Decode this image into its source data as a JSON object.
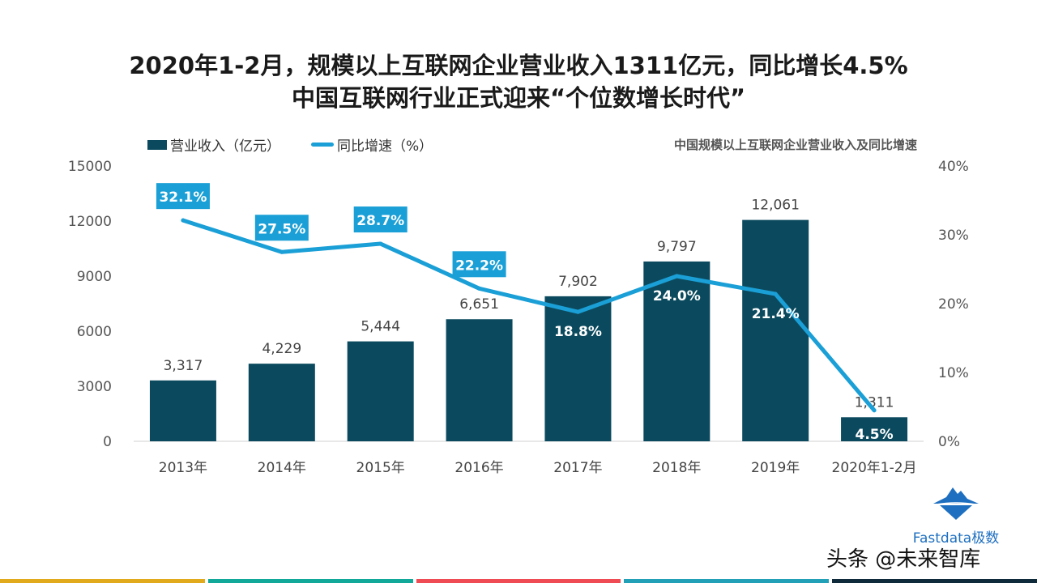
{
  "title_line1": "2020年1-2月，规模以上互联网企业营业收入1311亿元，同比增长4.5%",
  "title_line2": "中国互联网行业正式迎来“个位数增长时代”",
  "logo_text": "Fastdata极数",
  "watermark": "头条 @未来智库",
  "stripe_colors": [
    "#e0aa1c",
    "#11a89a",
    "#ef4b55",
    "#22a0b8",
    "#0f2a3b"
  ],
  "chart_data": {
    "type": "bar+line",
    "title": "中国规模以上互联网企业营业收入及同比增速",
    "categories": [
      "2013年",
      "2014年",
      "2015年",
      "2016年",
      "2017年",
      "2018年",
      "2019年",
      "2020年1-2月"
    ],
    "series": [
      {
        "name": "营业收入（亿元）",
        "type": "bar",
        "axis": "left",
        "color": "#0b4a5e",
        "values": [
          3317,
          4229,
          5444,
          6651,
          7902,
          9797,
          12061,
          1311
        ],
        "labels": [
          "3,317",
          "4,229",
          "5,444",
          "6,651",
          "7,902",
          "9,797",
          "12,061",
          "1,311"
        ]
      },
      {
        "name": "同比增速（%）",
        "type": "line",
        "axis": "right",
        "color": "#1a9fd6",
        "values": [
          32.1,
          27.5,
          28.7,
          22.2,
          18.8,
          24.0,
          21.4,
          4.5
        ],
        "labels": [
          "32.1%",
          "27.5%",
          "28.7%",
          "22.2%",
          "18.8%",
          "24.0%",
          "21.4%",
          "4.5%"
        ]
      }
    ],
    "left_axis": {
      "range": [
        0,
        15000
      ],
      "ticks": [
        "0",
        "3000",
        "6000",
        "9000",
        "12000",
        "15000"
      ]
    },
    "right_axis": {
      "range": [
        0,
        40
      ],
      "ticks": [
        "0%",
        "10%",
        "20%",
        "30%",
        "40%"
      ]
    },
    "legend": "top-left",
    "grid": false
  }
}
